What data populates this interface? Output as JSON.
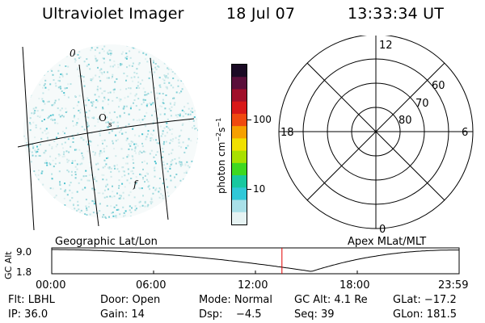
{
  "header": {
    "title": "Ultraviolet Imager",
    "date": "18 Jul 07",
    "time": "13:33:34 UT"
  },
  "imager": {
    "glyph_markers": [
      "0",
      "O",
      "s",
      "f"
    ]
  },
  "colorbar": {
    "label": "photon cm",
    "label_exp1": "−2",
    "label_mid": "s",
    "label_exp2": "−1",
    "ticks": [
      "100",
      "10"
    ],
    "colors": [
      "#1a0a24",
      "#5a0f3a",
      "#a0102a",
      "#d81919",
      "#f04a10",
      "#f6a000",
      "#f0e000",
      "#a8e000",
      "#3ed820",
      "#18c8a0",
      "#30c8d8",
      "#a9e0e8",
      "#e6f3f3"
    ]
  },
  "polar": {
    "mlt_labels": {
      "top": "12",
      "left": "18",
      "right": "6",
      "bottom": "0"
    },
    "lat_labels": [
      "60",
      "70",
      "80"
    ]
  },
  "plot": {
    "left_label": "Geographic Lat/Lon",
    "right_label": "Apex MLat/MLT",
    "y_axis_label": "GC Alt",
    "y_ticks": [
      "9.0",
      "1.8"
    ],
    "x_ticks": [
      "00:00",
      "06:00",
      "12:00",
      "18:00",
      "23:59"
    ],
    "marker_time_hours": 13.56,
    "marker_color": "#e00000"
  },
  "footer": {
    "row1": [
      "Flt: LBHL",
      "Door: Open",
      "Mode: Normal",
      "GC Alt: 4.1 Re",
      "GLat: −17.2"
    ],
    "row2": [
      "IP: 36.0",
      "Gain: 14",
      "Dsp:    −4.5",
      "Seq: 39",
      "GLon: 181.5"
    ]
  }
}
